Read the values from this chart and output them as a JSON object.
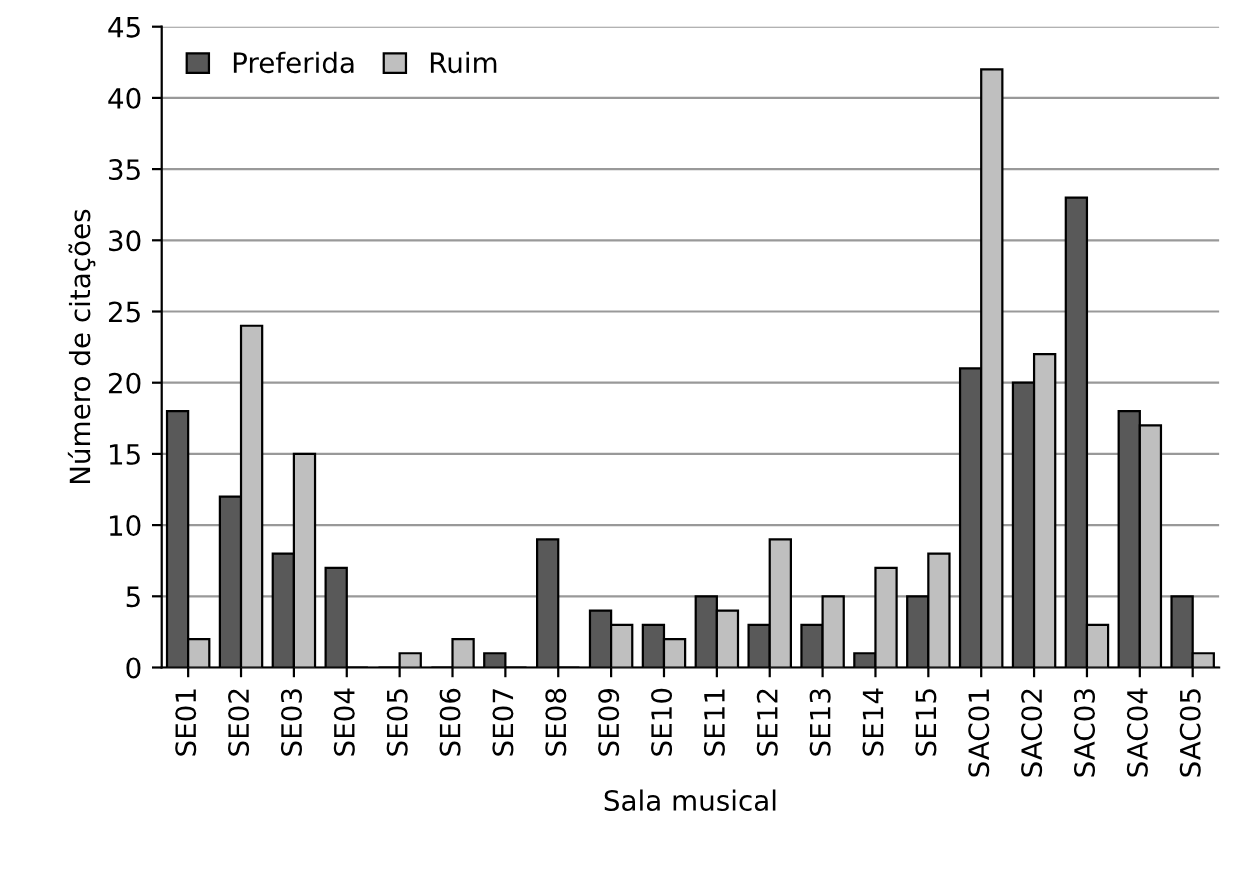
{
  "chart_data": {
    "type": "bar",
    "xlabel": "Sala musical",
    "ylabel": "Número de citações",
    "categories": [
      "SE01",
      "SE02",
      "SE03",
      "SE04",
      "SE05",
      "SE06",
      "SE07",
      "SE08",
      "SE09",
      "SE10",
      "SE11",
      "SE12",
      "SE13",
      "SE14",
      "SE15",
      "SAC01",
      "SAC02",
      "SAC03",
      "SAC04",
      "SAC05"
    ],
    "series": [
      {
        "name": "Preferida",
        "color": "#595959",
        "values": [
          18,
          12,
          8,
          7,
          0,
          0,
          1,
          9,
          4,
          3,
          5,
          3,
          3,
          1,
          5,
          21,
          20,
          33,
          18,
          5
        ]
      },
      {
        "name": "Ruim",
        "color": "#bfbfbf",
        "values": [
          2,
          24,
          15,
          0,
          1,
          2,
          0,
          0,
          3,
          2,
          4,
          9,
          5,
          7,
          8,
          42,
          22,
          3,
          17,
          1
        ]
      }
    ],
    "ylim": [
      0,
      45
    ],
    "yticks": [
      0,
      5,
      10,
      15,
      20,
      25,
      30,
      35,
      40,
      45
    ],
    "grid": "y",
    "legend": "top left"
  }
}
